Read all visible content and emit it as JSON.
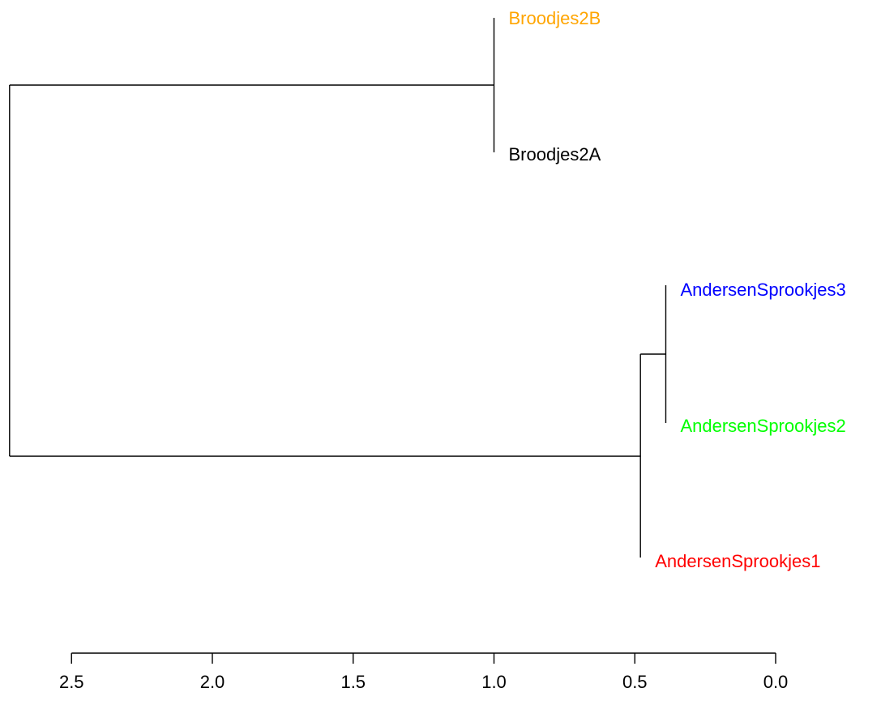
{
  "chart_data": {
    "type": "dendrogram",
    "orientation": "horizontal",
    "title": "",
    "xlabel": "",
    "ylabel": "",
    "xlim": [
      2.5,
      0.0
    ],
    "ticks": [
      "2.5",
      "2.0",
      "1.5",
      "1.0",
      "0.5",
      "0.0"
    ],
    "tick_values": [
      2.5,
      2.0,
      1.5,
      1.0,
      0.5,
      0.0
    ],
    "leaves": [
      {
        "label": "Broodjes2B",
        "color": "#FFA500"
      },
      {
        "label": "Broodjes2A",
        "color": "#000000"
      },
      {
        "label": "AndersenSprookjes3",
        "color": "#0000FF"
      },
      {
        "label": "AndersenSprookjes2",
        "color": "#00FF00"
      },
      {
        "label": "AndersenSprookjes1",
        "color": "#FF0000"
      }
    ],
    "merges": [
      {
        "children": [
          "Broodjes2B",
          "Broodjes2A"
        ],
        "height": 1.0
      },
      {
        "children": [
          "AndersenSprookjes3",
          "AndersenSprookjes2"
        ],
        "height": 0.39
      },
      {
        "children": [
          "AndersenSprookjes1",
          "AndersenSprookjes3+AndersenSprookjes2"
        ],
        "height": 0.48
      },
      {
        "children": [
          "Broodjes2B+Broodjes2A",
          "AndersenSprookjes1+AndersenSprookjes3+AndersenSprookjes2"
        ],
        "height": 2.72
      }
    ],
    "leaf_heights": {
      "Broodjes2B": 1.0,
      "Broodjes2A": 1.0,
      "AndersenSprookjes3": 0.39,
      "AndersenSprookjes2": 0.39,
      "AndersenSprookjes1": 0.48
    },
    "grid": false
  }
}
